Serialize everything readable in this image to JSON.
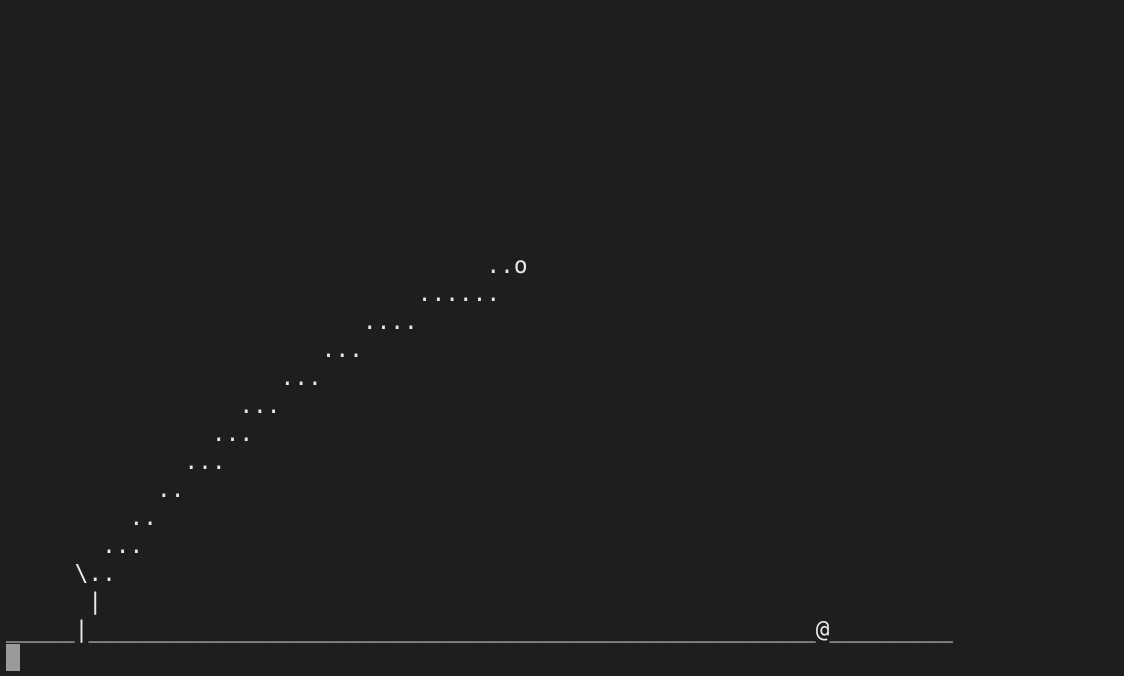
{
  "terminal": {
    "lines": [
      "",
      "",
      "",
      "",
      "",
      "",
      "",
      "",
      "",
      "                                   ..o",
      "                              ......",
      "                          ....",
      "                       ...",
      "                    ...",
      "                 ...",
      "               ...",
      "             ...",
      "           ..",
      "         ..",
      "       ...",
      "     \\..",
      "      |",
      "_____|_____________________________________________________@_________"
    ]
  },
  "colors": {
    "background": "#1e1e1e",
    "foreground": "#e8e8e8",
    "cursor": "#9a9a9a"
  }
}
